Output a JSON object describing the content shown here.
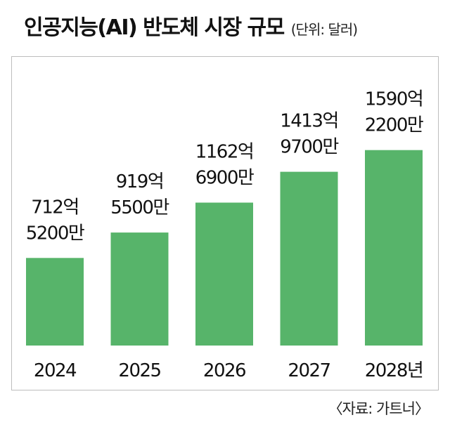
{
  "header": {
    "title": "인공지능(AI) 반도체 시장 규모",
    "unit_note": "(단위: 달러)"
  },
  "footer": {
    "source": "〈자료: 가트너〉"
  },
  "colors": {
    "bar": "#57b46a",
    "frame": "#bdbdbd",
    "text": "#111111"
  },
  "chart_data": {
    "type": "bar",
    "title": "인공지능(AI) 반도체 시장 규모",
    "unit": "달러",
    "categories": [
      "2024",
      "2025",
      "2026",
      "2027",
      "2028년"
    ],
    "values": [
      71252000000,
      91955000000,
      116269000000,
      141397000000,
      159022000000
    ],
    "value_labels": [
      [
        "712억",
        "5200만"
      ],
      [
        "919억",
        "5500만"
      ],
      [
        "1162억",
        "6900만"
      ],
      [
        "1413억",
        "9700만"
      ],
      [
        "1590억",
        "2200만"
      ]
    ],
    "ylim": [
      0,
      180000000000
    ],
    "grid": false,
    "legend": "none"
  }
}
